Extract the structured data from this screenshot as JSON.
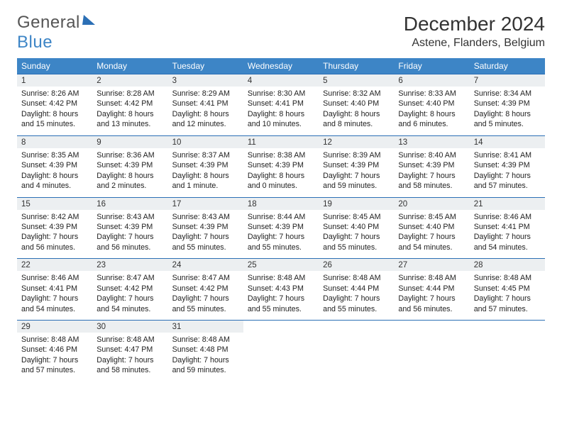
{
  "brand": {
    "part1": "General",
    "part2": "Blue"
  },
  "header": {
    "month_title": "December 2024",
    "location": "Astene, Flanders, Belgium"
  },
  "colors": {
    "header_bg": "#3d85c6",
    "row_divider": "#2b6fb5",
    "daynum_bg": "#eceff1",
    "text": "#222222",
    "page_bg": "#ffffff"
  },
  "day_names": [
    "Sunday",
    "Monday",
    "Tuesday",
    "Wednesday",
    "Thursday",
    "Friday",
    "Saturday"
  ],
  "weeks": [
    [
      {
        "n": "1",
        "sr": "8:26 AM",
        "ss": "4:42 PM",
        "dl": "8 hours and 15 minutes."
      },
      {
        "n": "2",
        "sr": "8:28 AM",
        "ss": "4:42 PM",
        "dl": "8 hours and 13 minutes."
      },
      {
        "n": "3",
        "sr": "8:29 AM",
        "ss": "4:41 PM",
        "dl": "8 hours and 12 minutes."
      },
      {
        "n": "4",
        "sr": "8:30 AM",
        "ss": "4:41 PM",
        "dl": "8 hours and 10 minutes."
      },
      {
        "n": "5",
        "sr": "8:32 AM",
        "ss": "4:40 PM",
        "dl": "8 hours and 8 minutes."
      },
      {
        "n": "6",
        "sr": "8:33 AM",
        "ss": "4:40 PM",
        "dl": "8 hours and 6 minutes."
      },
      {
        "n": "7",
        "sr": "8:34 AM",
        "ss": "4:39 PM",
        "dl": "8 hours and 5 minutes."
      }
    ],
    [
      {
        "n": "8",
        "sr": "8:35 AM",
        "ss": "4:39 PM",
        "dl": "8 hours and 4 minutes."
      },
      {
        "n": "9",
        "sr": "8:36 AM",
        "ss": "4:39 PM",
        "dl": "8 hours and 2 minutes."
      },
      {
        "n": "10",
        "sr": "8:37 AM",
        "ss": "4:39 PM",
        "dl": "8 hours and 1 minute."
      },
      {
        "n": "11",
        "sr": "8:38 AM",
        "ss": "4:39 PM",
        "dl": "8 hours and 0 minutes."
      },
      {
        "n": "12",
        "sr": "8:39 AM",
        "ss": "4:39 PM",
        "dl": "7 hours and 59 minutes."
      },
      {
        "n": "13",
        "sr": "8:40 AM",
        "ss": "4:39 PM",
        "dl": "7 hours and 58 minutes."
      },
      {
        "n": "14",
        "sr": "8:41 AM",
        "ss": "4:39 PM",
        "dl": "7 hours and 57 minutes."
      }
    ],
    [
      {
        "n": "15",
        "sr": "8:42 AM",
        "ss": "4:39 PM",
        "dl": "7 hours and 56 minutes."
      },
      {
        "n": "16",
        "sr": "8:43 AM",
        "ss": "4:39 PM",
        "dl": "7 hours and 56 minutes."
      },
      {
        "n": "17",
        "sr": "8:43 AM",
        "ss": "4:39 PM",
        "dl": "7 hours and 55 minutes."
      },
      {
        "n": "18",
        "sr": "8:44 AM",
        "ss": "4:39 PM",
        "dl": "7 hours and 55 minutes."
      },
      {
        "n": "19",
        "sr": "8:45 AM",
        "ss": "4:40 PM",
        "dl": "7 hours and 55 minutes."
      },
      {
        "n": "20",
        "sr": "8:45 AM",
        "ss": "4:40 PM",
        "dl": "7 hours and 54 minutes."
      },
      {
        "n": "21",
        "sr": "8:46 AM",
        "ss": "4:41 PM",
        "dl": "7 hours and 54 minutes."
      }
    ],
    [
      {
        "n": "22",
        "sr": "8:46 AM",
        "ss": "4:41 PM",
        "dl": "7 hours and 54 minutes."
      },
      {
        "n": "23",
        "sr": "8:47 AM",
        "ss": "4:42 PM",
        "dl": "7 hours and 54 minutes."
      },
      {
        "n": "24",
        "sr": "8:47 AM",
        "ss": "4:42 PM",
        "dl": "7 hours and 55 minutes."
      },
      {
        "n": "25",
        "sr": "8:48 AM",
        "ss": "4:43 PM",
        "dl": "7 hours and 55 minutes."
      },
      {
        "n": "26",
        "sr": "8:48 AM",
        "ss": "4:44 PM",
        "dl": "7 hours and 55 minutes."
      },
      {
        "n": "27",
        "sr": "8:48 AM",
        "ss": "4:44 PM",
        "dl": "7 hours and 56 minutes."
      },
      {
        "n": "28",
        "sr": "8:48 AM",
        "ss": "4:45 PM",
        "dl": "7 hours and 57 minutes."
      }
    ],
    [
      {
        "n": "29",
        "sr": "8:48 AM",
        "ss": "4:46 PM",
        "dl": "7 hours and 57 minutes."
      },
      {
        "n": "30",
        "sr": "8:48 AM",
        "ss": "4:47 PM",
        "dl": "7 hours and 58 minutes."
      },
      {
        "n": "31",
        "sr": "8:48 AM",
        "ss": "4:48 PM",
        "dl": "7 hours and 59 minutes."
      },
      null,
      null,
      null,
      null
    ]
  ],
  "labels": {
    "sunrise": "Sunrise:",
    "sunset": "Sunset:",
    "daylight": "Daylight:"
  }
}
